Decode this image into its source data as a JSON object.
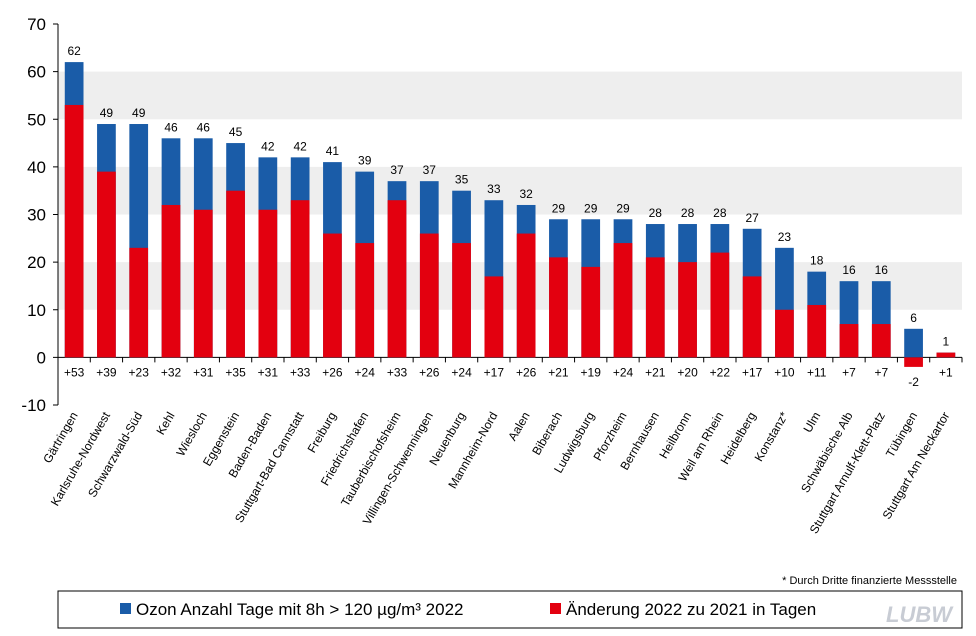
{
  "chart_data": {
    "type": "bar",
    "overlap": true,
    "categories": [
      "Gärtringen",
      "Karlsruhe-Nordwest",
      "Schwarzwald-Süd",
      "Kehl",
      "Wiesloch",
      "Eggenstein",
      "Baden-Baden",
      "Stuttgart-Bad Cannstatt",
      "Freiburg",
      "Friedrichshafen",
      "Tauberbischofsheim",
      "Villingen-Schwenningen",
      "Neuenburg",
      "Mannheim-Nord",
      "Aalen",
      "Biberach",
      "Ludwigsburg",
      "Pforzheim",
      "Bernhausen",
      "Heilbronn",
      "Weil am Rhein",
      "Heidelberg",
      "Konstanz*",
      "Ulm",
      "Schwäbische Alb",
      "Stuttgart Arnulf-Klett-Platz",
      "Tübingen",
      "Stuttgart Am Neckartor"
    ],
    "series": [
      {
        "name": "Ozon Anzahl Tage mit 8h > 120 µg/m³ 2022",
        "color": "#1a5ca8",
        "values": [
          62,
          49,
          49,
          46,
          46,
          45,
          42,
          42,
          41,
          39,
          37,
          37,
          35,
          33,
          32,
          29,
          29,
          29,
          28,
          28,
          28,
          27,
          23,
          18,
          16,
          16,
          6,
          1
        ]
      },
      {
        "name": "Änderung 2022 zu 2021 in Tagen",
        "color": "#e3000f",
        "values": [
          53,
          39,
          23,
          32,
          31,
          35,
          31,
          33,
          26,
          24,
          33,
          26,
          24,
          17,
          26,
          21,
          19,
          24,
          21,
          20,
          22,
          17,
          10,
          11,
          7,
          7,
          -2,
          1
        ],
        "value_labels": [
          "+53",
          "+39",
          "+23",
          "+32",
          "+31",
          "+35",
          "+31",
          "+33",
          "+26",
          "+24",
          "+33",
          "+26",
          "+24",
          "+17",
          "+26",
          "+21",
          "+19",
          "+24",
          "+21",
          "+20",
          "+22",
          "+17",
          "+10",
          "+11",
          "+7",
          "+7",
          "-2",
          "+1"
        ]
      }
    ],
    "ylim": [
      -10,
      70
    ],
    "yticks": [
      -10,
      0,
      10,
      20,
      30,
      40,
      50,
      60,
      70
    ],
    "grid": "bands",
    "footnote": "* Durch Dritte finanzierte Messstelle",
    "logo": "LUBW"
  }
}
